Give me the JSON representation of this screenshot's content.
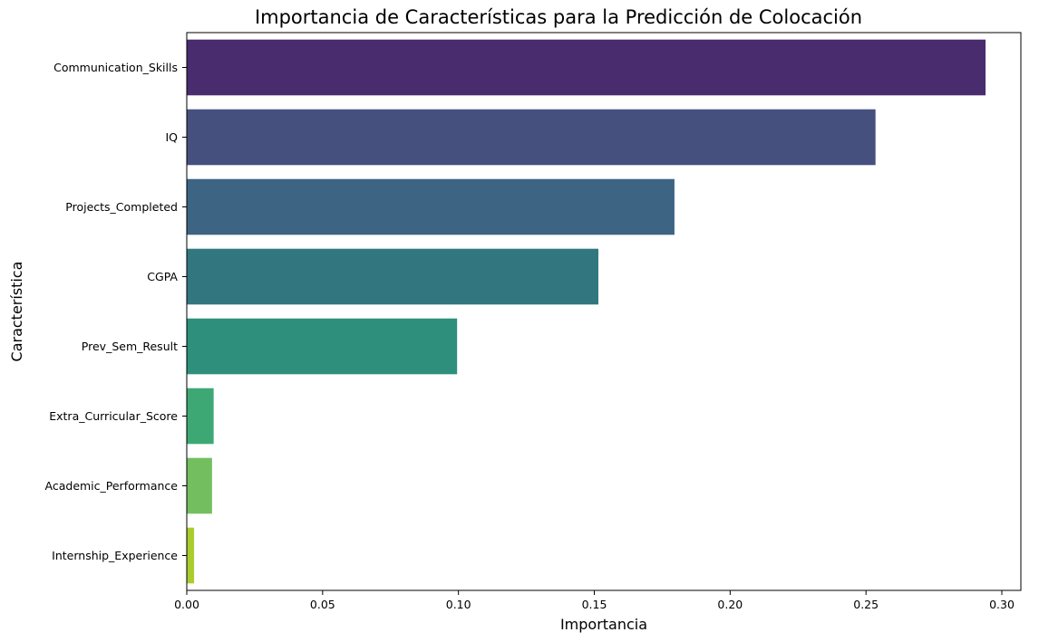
{
  "chart_data": {
    "type": "bar",
    "orientation": "horizontal",
    "title": "Importancia de Características para la Predicción de Colocación",
    "xlabel": "Importancia",
    "ylabel": "Característica",
    "categories": [
      "Communication_Skills",
      "IQ",
      "Projects_Completed",
      "CGPA",
      "Prev_Sem_Result",
      "Extra_Curricular_Score",
      "Academic_Performance",
      "Internship_Experience"
    ],
    "values": [
      0.294,
      0.2535,
      0.1795,
      0.1515,
      0.0995,
      0.0099,
      0.0093,
      0.0027
    ],
    "colors": [
      "#482C6E",
      "#46507F",
      "#3D6483",
      "#327780",
      "#2E8F7C",
      "#3EA875",
      "#73BF5F",
      "#AACC2F"
    ],
    "xlim": [
      0,
      0.307
    ],
    "xticks": [
      "0.00",
      "0.05",
      "0.10",
      "0.15",
      "0.20",
      "0.25",
      "0.30"
    ],
    "grid": false
  }
}
